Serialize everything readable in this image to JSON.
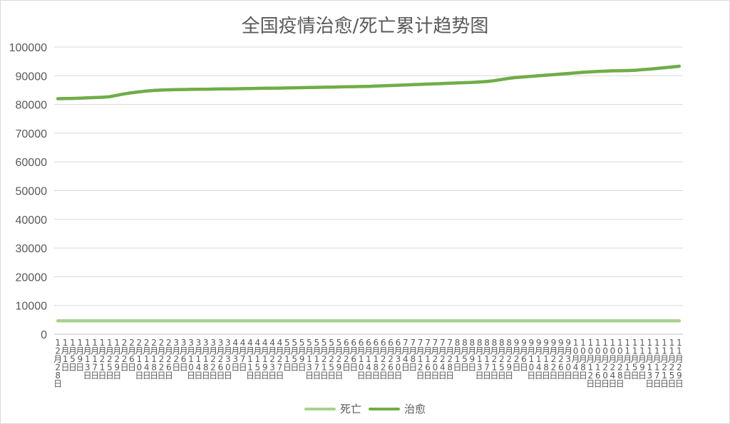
{
  "chart_data": {
    "type": "line",
    "title": "全国疫情治愈/死亡累计趋势图",
    "xlabel": "",
    "ylabel": "",
    "ylim": [
      0,
      100000
    ],
    "yticks": [
      0,
      10000,
      20000,
      30000,
      40000,
      50000,
      60000,
      70000,
      80000,
      90000,
      100000
    ],
    "grid": true,
    "legend_position": "bottom",
    "x": [
      "12月28日",
      "1月1日",
      "1月5日",
      "1月9日",
      "1月13日",
      "1月17日",
      "1月21日",
      "1月25日",
      "1月29日",
      "2月2日",
      "2月6日",
      "2月10日",
      "2月14日",
      "2月18日",
      "2月22日",
      "2月26日",
      "3月2日",
      "3月6日",
      "3月10日",
      "3月14日",
      "3月18日",
      "3月22日",
      "3月26日",
      "3月30日",
      "4月3日",
      "4月7日",
      "4月11日",
      "4月15日",
      "4月19日",
      "4月23日",
      "4月27日",
      "5月1日",
      "5月5日",
      "5月9日",
      "5月13日",
      "5月17日",
      "5月21日",
      "5月25日",
      "5月29日",
      "6月2日",
      "6月6日",
      "6月10日",
      "6月14日",
      "6月18日",
      "6月22日",
      "6月26日",
      "6月30日",
      "7月4日",
      "7月8日",
      "7月12日",
      "7月16日",
      "7月20日",
      "7月24日",
      "7月28日",
      "8月1日",
      "8月5日",
      "8月9日",
      "8月13日",
      "8月17日",
      "8月21日",
      "8月25日",
      "8月29日",
      "9月2日",
      "9月6日",
      "9月10日",
      "9月14日",
      "9月18日",
      "9月22日",
      "9月26日",
      "9月30日",
      "10月4日",
      "10月8日",
      "10月12日",
      "10月16日",
      "10月20日",
      "10月24日",
      "10月28日",
      "11月1日",
      "11月5日",
      "11月9日",
      "11月13日",
      "11月17日",
      "11月21日",
      "11月25日",
      "11月29日"
    ],
    "series": [
      {
        "name": "死亡",
        "color": "#a9d18e",
        "values": [
          4634,
          4634,
          4634,
          4634,
          4634,
          4634,
          4634,
          4634,
          4635,
          4635,
          4635,
          4635,
          4635,
          4635,
          4635,
          4635,
          4636,
          4636,
          4636,
          4636,
          4636,
          4636,
          4636,
          4636,
          4636,
          4636,
          4636,
          4636,
          4636,
          4636,
          4636,
          4636,
          4636,
          4636,
          4636,
          4636,
          4636,
          4636,
          4636,
          4636,
          4636,
          4636,
          4636,
          4636,
          4636,
          4636,
          4636,
          4636,
          4636,
          4636,
          4636,
          4636,
          4636,
          4636,
          4636,
          4636,
          4636,
          4636,
          4636,
          4636,
          4636,
          4636,
          4636,
          4636,
          4636,
          4636,
          4636,
          4636,
          4636,
          4636,
          4636,
          4636,
          4636,
          4636,
          4636,
          4636,
          4636,
          4636,
          4636,
          4636,
          4636,
          4636,
          4636,
          4636,
          4636
        ]
      },
      {
        "name": "治愈",
        "color": "#70ad47",
        "values": [
          82000,
          82050,
          82100,
          82200,
          82300,
          82400,
          82500,
          82700,
          83200,
          83700,
          84100,
          84400,
          84700,
          84900,
          85000,
          85100,
          85150,
          85200,
          85250,
          85300,
          85320,
          85350,
          85400,
          85420,
          85450,
          85500,
          85550,
          85600,
          85650,
          85680,
          85700,
          85750,
          85800,
          85850,
          85900,
          85950,
          86000,
          86050,
          86100,
          86150,
          86200,
          86250,
          86300,
          86400,
          86500,
          86600,
          86700,
          86800,
          86900,
          87000,
          87100,
          87200,
          87300,
          87400,
          87500,
          87600,
          87700,
          87850,
          88000,
          88300,
          88700,
          89100,
          89400,
          89600,
          89800,
          90000,
          90200,
          90400,
          90600,
          90800,
          91000,
          91200,
          91350,
          91500,
          91600,
          91700,
          91750,
          91800,
          91900,
          92100,
          92300,
          92550,
          92800,
          93050,
          93300
        ]
      }
    ]
  }
}
